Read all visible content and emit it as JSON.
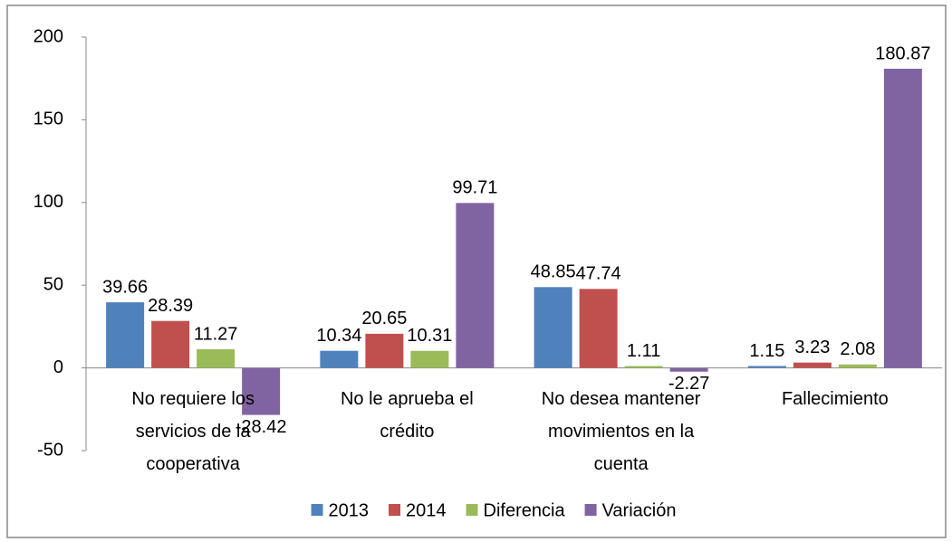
{
  "chart_data": {
    "type": "bar",
    "categories": [
      "No requiere los servicios de la cooperativa",
      "No le aprueba el crédito",
      "No desea mantener movimientos en la cuenta",
      "Fallecimiento"
    ],
    "series": [
      {
        "name": "2013",
        "color": "#4f81bd",
        "values": [
          39.66,
          10.34,
          48.85,
          1.15
        ]
      },
      {
        "name": "2014",
        "color": "#c0504d",
        "values": [
          28.39,
          20.65,
          47.74,
          3.23
        ]
      },
      {
        "name": "Diferencia",
        "color": "#9bbb59",
        "values": [
          11.27,
          10.31,
          1.11,
          2.08
        ]
      },
      {
        "name": "Variación",
        "color": "#8064a2",
        "values": [
          -28.42,
          99.71,
          -2.27,
          180.87
        ]
      }
    ],
    "ylim": [
      -50,
      200
    ],
    "yticks": [
      -50,
      0,
      50,
      100,
      150,
      200
    ],
    "grid": false,
    "legend": "bottom"
  }
}
